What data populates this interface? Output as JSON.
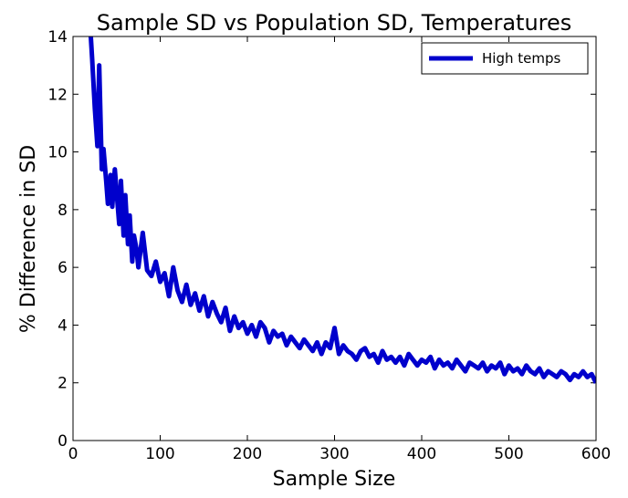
{
  "chart_data": {
    "type": "line",
    "title": "Sample SD vs Population SD, Temperatures",
    "xlabel": "Sample Size",
    "ylabel": "% Difference in SD",
    "xlim": [
      0,
      600
    ],
    "ylim": [
      0,
      14
    ],
    "xticks": [
      "0",
      "100",
      "200",
      "300",
      "400",
      "500",
      "600"
    ],
    "yticks": [
      "0",
      "2",
      "4",
      "6",
      "8",
      "10",
      "12",
      "14"
    ],
    "grid": false,
    "legend_position": "top-right",
    "series": [
      {
        "name": "High temps",
        "color": "#0000cc",
        "x": [
          20,
          22,
          25,
          28,
          30,
          33,
          35,
          38,
          40,
          43,
          45,
          48,
          50,
          53,
          55,
          58,
          60,
          63,
          65,
          68,
          70,
          73,
          75,
          80,
          85,
          90,
          95,
          100,
          105,
          110,
          115,
          120,
          125,
          130,
          135,
          140,
          145,
          150,
          155,
          160,
          165,
          170,
          175,
          180,
          185,
          190,
          195,
          200,
          205,
          210,
          215,
          220,
          225,
          230,
          235,
          240,
          245,
          250,
          255,
          260,
          265,
          270,
          275,
          280,
          285,
          290,
          295,
          300,
          305,
          310,
          315,
          320,
          325,
          330,
          335,
          340,
          345,
          350,
          355,
          360,
          365,
          370,
          375,
          380,
          385,
          390,
          395,
          400,
          405,
          410,
          415,
          420,
          425,
          430,
          435,
          440,
          445,
          450,
          455,
          460,
          465,
          470,
          475,
          480,
          485,
          490,
          495,
          500,
          505,
          510,
          515,
          520,
          525,
          530,
          535,
          540,
          545,
          550,
          555,
          560,
          565,
          570,
          575,
          580,
          585,
          590,
          595,
          600
        ],
        "y": [
          14.2,
          13.2,
          11.5,
          10.2,
          13.0,
          9.4,
          10.1,
          9.0,
          8.2,
          9.2,
          8.1,
          9.4,
          8.6,
          7.5,
          9.0,
          7.1,
          8.5,
          6.8,
          7.8,
          6.2,
          7.1,
          6.6,
          6.0,
          7.2,
          5.9,
          5.7,
          6.2,
          5.5,
          5.8,
          5.0,
          6.0,
          5.2,
          4.8,
          5.4,
          4.7,
          5.1,
          4.5,
          5.0,
          4.3,
          4.8,
          4.4,
          4.1,
          4.6,
          3.8,
          4.3,
          3.9,
          4.1,
          3.7,
          4.0,
          3.6,
          4.1,
          3.9,
          3.4,
          3.8,
          3.6,
          3.7,
          3.3,
          3.6,
          3.4,
          3.2,
          3.5,
          3.3,
          3.1,
          3.4,
          3.0,
          3.4,
          3.2,
          3.9,
          3.0,
          3.3,
          3.1,
          3.0,
          2.8,
          3.1,
          3.2,
          2.9,
          3.0,
          2.7,
          3.1,
          2.8,
          2.9,
          2.7,
          2.9,
          2.6,
          3.0,
          2.8,
          2.6,
          2.8,
          2.7,
          2.9,
          2.5,
          2.8,
          2.6,
          2.7,
          2.5,
          2.8,
          2.6,
          2.4,
          2.7,
          2.6,
          2.5,
          2.7,
          2.4,
          2.6,
          2.5,
          2.7,
          2.3,
          2.6,
          2.4,
          2.5,
          2.3,
          2.6,
          2.4,
          2.3,
          2.5,
          2.2,
          2.4,
          2.3,
          2.2,
          2.4,
          2.3,
          2.1,
          2.3,
          2.2,
          2.4,
          2.2,
          2.3,
          2.0
        ]
      }
    ]
  }
}
